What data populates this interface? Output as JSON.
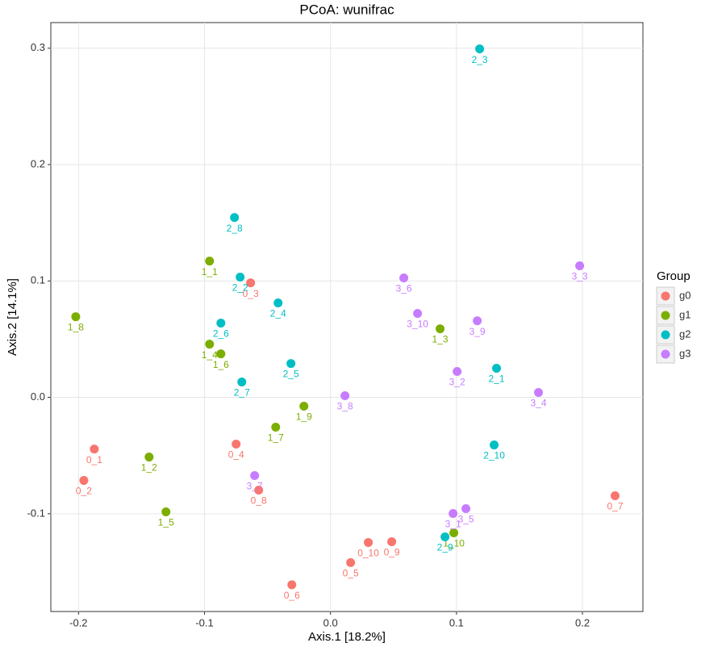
{
  "chart_data": {
    "type": "scatter",
    "title": "PCoA: wunifrac",
    "x_label": "Axis.1   [18.2%]",
    "y_label": "Axis.2   [14.1%]",
    "legend_title": "Group",
    "legend_position": "right",
    "grid": true,
    "xlim": [
      -0.222,
      0.248
    ],
    "ylim": [
      -0.184,
      0.322
    ],
    "xticks": [
      -0.2,
      -0.1,
      {
        "value": 0,
        "label": "0.0"
      },
      0.1,
      0.2
    ],
    "yticks": [
      -0.1,
      {
        "value": 0,
        "label": "0.0"
      },
      0.1,
      0.2,
      0.3
    ],
    "series": [
      {
        "name": "g0",
        "color": "#F8766D",
        "point_labels": [
          "0_1",
          "0_2",
          "0_3",
          "0_4",
          "0_5",
          "0_6",
          "0_7",
          "0_8",
          "0_9",
          "0_10"
        ],
        "x": [
          -0.1875,
          -0.1958,
          -0.0634,
          -0.0749,
          0.016,
          -0.0307,
          0.2259,
          -0.057,
          0.0486,
          0.03
        ],
        "y": [
          -0.0444,
          -0.0714,
          0.0984,
          -0.0402,
          -0.142,
          -0.161,
          -0.0845,
          -0.0797,
          -0.124,
          -0.1247
        ]
      },
      {
        "name": "g1",
        "color": "#7CAE00",
        "point_labels": [
          "1_1",
          "1_2",
          "1_3",
          "1_4",
          "1_5",
          "1_6",
          "1_7",
          "1_8",
          "1_9",
          "1_10"
        ],
        "x": [
          -0.096,
          -0.144,
          0.087,
          -0.096,
          -0.1306,
          -0.087,
          -0.0435,
          -0.2022,
          -0.0211,
          0.0979
        ],
        "y": [
          0.1171,
          -0.0513,
          0.0589,
          0.0457,
          -0.0984,
          0.0374,
          -0.0256,
          0.0693,
          -0.0076,
          -0.1164
        ]
      },
      {
        "name": "g2",
        "color": "#00BFC4",
        "point_labels": [
          "2_1",
          "2_2",
          "2_3",
          "2_4",
          "2_5",
          "2_6",
          "2_7",
          "2_8",
          "2_9",
          "2_10"
        ],
        "x": [
          0.1318,
          -0.0717,
          0.1184,
          -0.0416,
          -0.0314,
          -0.087,
          -0.0704,
          -0.0762,
          0.0909,
          0.1299
        ],
        "y": [
          0.025,
          0.1033,
          0.2994,
          0.0811,
          0.0291,
          0.0638,
          0.0132,
          0.1545,
          -0.1199,
          -0.0409
        ]
      },
      {
        "name": "g3",
        "color": "#C77CFF",
        "point_labels": [
          "3_1",
          "3_2",
          "3_3",
          "3_4",
          "3_5",
          "3_6",
          "3_7",
          "3_8",
          "3_9",
          "3_10"
        ],
        "x": [
          0.0973,
          0.1005,
          0.1978,
          0.1651,
          0.1075,
          0.0582,
          -0.0602,
          0.0115,
          0.1165,
          0.0691
        ],
        "y": [
          -0.0998,
          0.0222,
          0.113,
          0.0042,
          -0.0956,
          0.1026,
          -0.0672,
          0.0014,
          0.0658,
          0.0721
        ]
      }
    ]
  }
}
